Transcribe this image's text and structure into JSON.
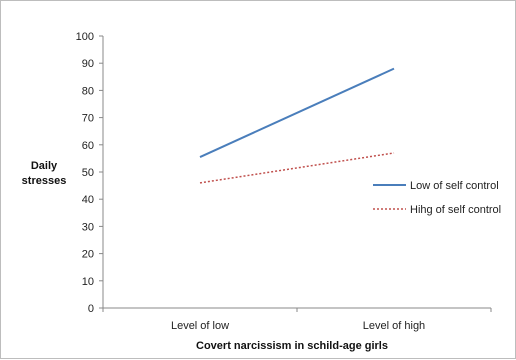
{
  "chart_data": {
    "type": "line",
    "title": "",
    "xlabel": "Covert narcissism  in schild-age  girls",
    "ylabel_lines": [
      "Daily",
      "stresses"
    ],
    "ylim": [
      0,
      100
    ],
    "yticks": [
      0,
      10,
      20,
      30,
      40,
      50,
      60,
      70,
      80,
      90,
      100
    ],
    "categories": [
      "Level of low",
      "Level of high"
    ],
    "grid": false,
    "legend_position": "right",
    "series": [
      {
        "name": "Low of self control",
        "values": [
          55.5,
          88
        ],
        "color": "#4a7ebb",
        "style": "solid"
      },
      {
        "name": "Hihg of self control",
        "values": [
          46,
          57
        ],
        "color": "#c0504d",
        "style": "dotted"
      }
    ]
  }
}
